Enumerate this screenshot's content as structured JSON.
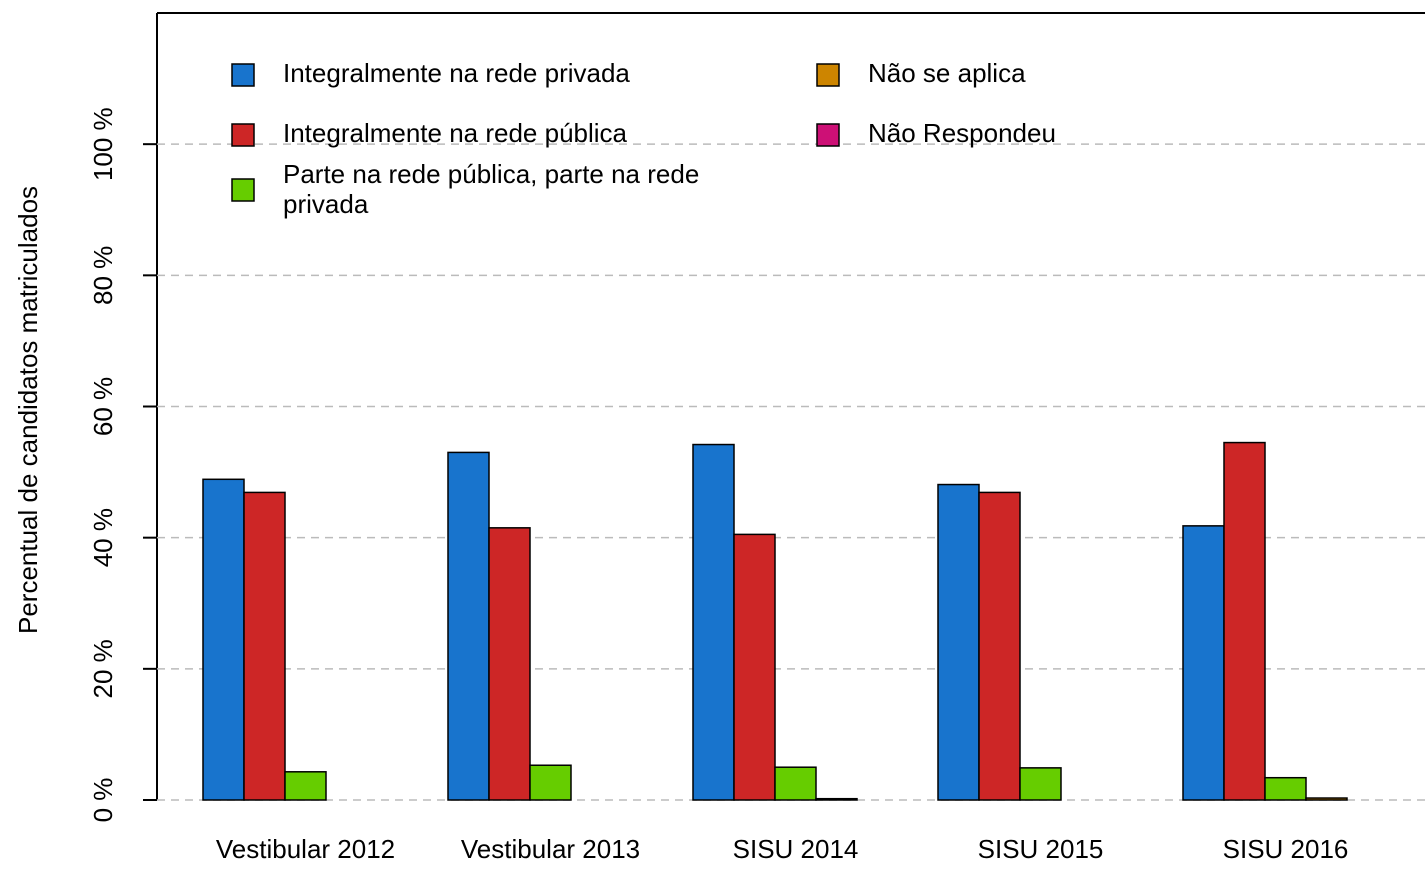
{
  "chart_data": {
    "type": "bar",
    "y_label": "Percentual de candidatos matriculados",
    "categories": [
      "Vestibular 2012",
      "Vestibular 2013",
      "SISU 2014",
      "SISU 2015",
      "SISU 2016"
    ],
    "series": [
      {
        "name": "Integralmente na rede privada",
        "color": "#1874cd",
        "values": [
          48.9,
          53.0,
          54.2,
          48.1,
          41.8
        ]
      },
      {
        "name": "Integralmente na rede pública",
        "color": "#cd2626",
        "values": [
          46.9,
          41.5,
          40.5,
          46.9,
          54.5
        ]
      },
      {
        "name": "Parte na rede pública, parte na rede privada",
        "color": "#66cd00",
        "values": [
          4.3,
          5.3,
          5.0,
          4.9,
          3.4
        ]
      },
      {
        "name": "Não se aplica",
        "color": "#cd8500",
        "values": [
          0,
          0,
          0.2,
          0,
          0.3
        ]
      },
      {
        "name": "Não Respondeu",
        "color": "#cd1076",
        "values": [
          0,
          0,
          0,
          0,
          0
        ]
      }
    ],
    "ylim": [
      0,
      120
    ],
    "yticks": [
      {
        "value": 0,
        "label": "0 %"
      },
      {
        "value": 20,
        "label": "20 %"
      },
      {
        "value": 40,
        "label": "40 %"
      },
      {
        "value": 60,
        "label": "60 %"
      },
      {
        "value": 80,
        "label": "80 %"
      },
      {
        "value": 100,
        "label": "100 %"
      }
    ],
    "grid": true
  }
}
